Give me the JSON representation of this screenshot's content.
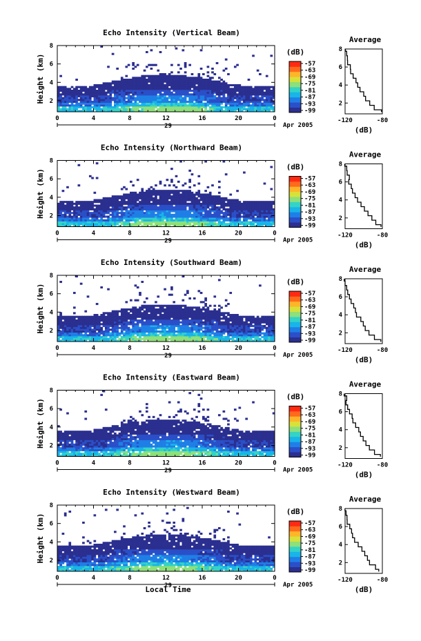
{
  "figure": {
    "common": {
      "height_axis_label": "Height (km)",
      "time_axis_label": "Local Time",
      "day_label": "29",
      "month_label": "Apr 2005",
      "time_ticks": [
        "0",
        "4",
        "8",
        "12",
        "16",
        "20",
        "0"
      ],
      "height_ticks": [
        "2",
        "4",
        "6",
        "8"
      ],
      "colorbar_unit": "(dB)",
      "colorbar_ticks": [
        "-57",
        "-63",
        "-69",
        "-75",
        "-81",
        "-87",
        "-93",
        "-99"
      ],
      "colorbar_colors": [
        "#2b2f8f",
        "#2a4fc8",
        "#1f7fe6",
        "#19b4e8",
        "#34d3c6",
        "#8de07a",
        "#d8e13a",
        "#ffb52a",
        "#ff6a1c",
        "#ff2a14"
      ],
      "profile_title": "Average",
      "profile_xlabel": "(dB)",
      "profile_x_ticks": [
        "-120",
        "-80"
      ],
      "profile_y_ticks": [
        "2",
        "4",
        "6",
        "8"
      ]
    },
    "panels": [
      {
        "title": "Echo Intensity (Vertical Beam)"
      },
      {
        "title": "Echo Intensity (Northward Beam)"
      },
      {
        "title": "Echo Intensity (Southward Beam)"
      },
      {
        "title": "Echo Intensity (Eastward Beam)"
      },
      {
        "title": "Echo Intensity (Westward Beam)"
      }
    ]
  },
  "chart_data": [
    {
      "type": "heatmap",
      "title": "Echo Intensity (Vertical Beam)",
      "xlabel": "",
      "ylabel": "Height (km)",
      "xlim": [
        0,
        24
      ],
      "ylim": [
        0.8,
        8
      ],
      "z_unit": "dB",
      "z_range": [
        -99,
        -57
      ],
      "profile": {
        "type": "line",
        "title": "Average",
        "xlabel": "(dB)",
        "xlim": [
          -120,
          -80
        ],
        "ylim": [
          0.8,
          8
        ],
        "heights": [
          1,
          1.5,
          2,
          2.5,
          3,
          3.5,
          4,
          4.5,
          5,
          5.5,
          6,
          6.5,
          7,
          7.5,
          8
        ],
        "values": [
          -82,
          -88,
          -93,
          -97,
          -100,
          -104,
          -107,
          -109,
          -111,
          -113,
          -115,
          -117,
          -118,
          -119,
          -120
        ]
      }
    },
    {
      "type": "heatmap",
      "title": "Echo Intensity (Northward Beam)",
      "xlabel": "",
      "ylabel": "Height (km)",
      "xlim": [
        0,
        24
      ],
      "ylim": [
        0.8,
        8
      ],
      "z_unit": "dB",
      "z_range": [
        -99,
        -57
      ],
      "profile": {
        "type": "line",
        "title": "Average",
        "xlabel": "(dB)",
        "xlim": [
          -120,
          -80
        ],
        "ylim": [
          0.8,
          8
        ],
        "heights": [
          1,
          1.5,
          2,
          2.5,
          3,
          3.5,
          4,
          4.5,
          5,
          5.5,
          6,
          6.5,
          7,
          7.5,
          8
        ],
        "values": [
          -82,
          -87,
          -92,
          -96,
          -100,
          -103,
          -106,
          -109,
          -111,
          -113,
          -115,
          -116,
          -118,
          -119,
          -120
        ]
      }
    },
    {
      "type": "heatmap",
      "title": "Echo Intensity (Southward Beam)",
      "xlabel": "",
      "ylabel": "Height (km)",
      "xlim": [
        0,
        24
      ],
      "ylim": [
        0.8,
        8
      ],
      "z_unit": "dB",
      "z_range": [
        -99,
        -57
      ],
      "profile": {
        "type": "line",
        "title": "Average",
        "xlabel": "(dB)",
        "xlim": [
          -120,
          -80
        ],
        "ylim": [
          0.8,
          8
        ],
        "heights": [
          1,
          1.5,
          2,
          2.5,
          3,
          3.5,
          4,
          4.5,
          5,
          5.5,
          6,
          6.5,
          7,
          7.5,
          8
        ],
        "values": [
          -81,
          -88,
          -94,
          -98,
          -101,
          -104,
          -107,
          -109,
          -111,
          -113,
          -115,
          -117,
          -118,
          -119,
          -120
        ]
      }
    },
    {
      "type": "heatmap",
      "title": "Echo Intensity (Eastward Beam)",
      "xlabel": "",
      "ylabel": "Height (km)",
      "xlim": [
        0,
        24
      ],
      "ylim": [
        0.8,
        8
      ],
      "z_unit": "dB",
      "z_range": [
        -99,
        -57
      ],
      "profile": {
        "type": "line",
        "title": "Average",
        "xlabel": "(dB)",
        "xlim": [
          -120,
          -80
        ],
        "ylim": [
          0.8,
          8
        ],
        "heights": [
          1,
          1.5,
          2,
          2.5,
          3,
          3.5,
          4,
          4.5,
          5,
          5.5,
          6,
          6.5,
          7,
          7.5,
          8
        ],
        "values": [
          -82,
          -88,
          -93,
          -97,
          -100,
          -103,
          -106,
          -109,
          -111,
          -113,
          -115,
          -117,
          -118,
          -119,
          -120
        ]
      }
    },
    {
      "type": "heatmap",
      "title": "Echo Intensity (Westward Beam)",
      "xlabel": "Local Time",
      "ylabel": "Height (km)",
      "xlim": [
        0,
        24
      ],
      "ylim": [
        0.8,
        8
      ],
      "z_unit": "dB",
      "z_range": [
        -99,
        -57
      ],
      "profile": {
        "type": "line",
        "title": "Average",
        "xlabel": "(dB)",
        "xlim": [
          -120,
          -80
        ],
        "ylim": [
          0.8,
          8
        ],
        "heights": [
          1,
          1.5,
          2,
          2.5,
          3,
          3.5,
          4,
          4.5,
          5,
          5.5,
          6,
          6.5,
          7,
          7.5,
          8
        ],
        "values": [
          -83,
          -88,
          -93,
          -97,
          -100,
          -103,
          -106,
          -109,
          -111,
          -113,
          -115,
          -117,
          -118,
          -119,
          -120
        ]
      }
    }
  ]
}
